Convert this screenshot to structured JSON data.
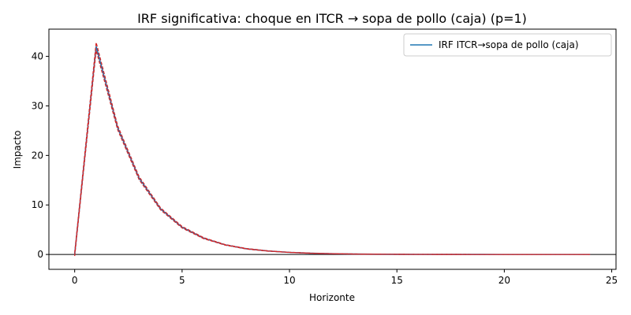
{
  "chart_data": {
    "type": "line",
    "title": "IRF significativa: choque en ITCR → sopa de pollo (caja) (p=1)",
    "xlabel": "Horizonte",
    "ylabel": "Impacto",
    "xlim": [
      -1.2,
      25.2
    ],
    "ylim": [
      -3,
      45.5
    ],
    "x_ticks": [
      0,
      5,
      10,
      15,
      20,
      25
    ],
    "y_ticks": [
      0,
      10,
      20,
      30,
      40
    ],
    "zero_line": true,
    "legend": {
      "placement": "top-right",
      "entries": [
        "IRF ITCR→sopa de pollo (caja)"
      ]
    },
    "colors": {
      "irf": "#1f77b4",
      "bands": "#d62728",
      "zero": "#000000"
    },
    "x": [
      0,
      1,
      2,
      3,
      4,
      5,
      6,
      7,
      8,
      9,
      10,
      11,
      12,
      13,
      14,
      15,
      16,
      17,
      18,
      19,
      20,
      21,
      22,
      23,
      24
    ],
    "series": [
      {
        "name": "IRF ITCR→sopa de pollo (caja)",
        "role": "irf",
        "values": [
          0,
          42.0,
          25.6,
          15.4,
          9.2,
          5.5,
          3.3,
          1.95,
          1.15,
          0.7,
          0.42,
          0.25,
          0.15,
          0.09,
          0.055,
          0.033,
          0.02,
          0.012,
          0.007,
          0.004,
          0.0025,
          0.0015,
          0.001,
          0.0006,
          0.0004
        ]
      },
      {
        "role": "upper-band",
        "values": [
          0.3,
          42.8,
          26.0,
          15.7,
          9.4,
          5.65,
          3.4,
          2.0,
          1.2,
          0.73,
          0.44,
          0.26,
          0.16,
          0.095,
          0.058,
          0.035,
          0.021,
          0.013,
          0.008,
          0.005,
          0.003,
          0.002,
          0.0012,
          0.0007,
          0.0005
        ]
      },
      {
        "role": "lower-band",
        "values": [
          -0.3,
          41.2,
          25.2,
          15.1,
          9.0,
          5.35,
          3.2,
          1.9,
          1.1,
          0.67,
          0.4,
          0.24,
          0.14,
          0.085,
          0.052,
          0.031,
          0.019,
          0.011,
          0.0065,
          0.0038,
          0.0023,
          0.0014,
          0.0009,
          0.0005,
          0.0003
        ]
      }
    ]
  }
}
